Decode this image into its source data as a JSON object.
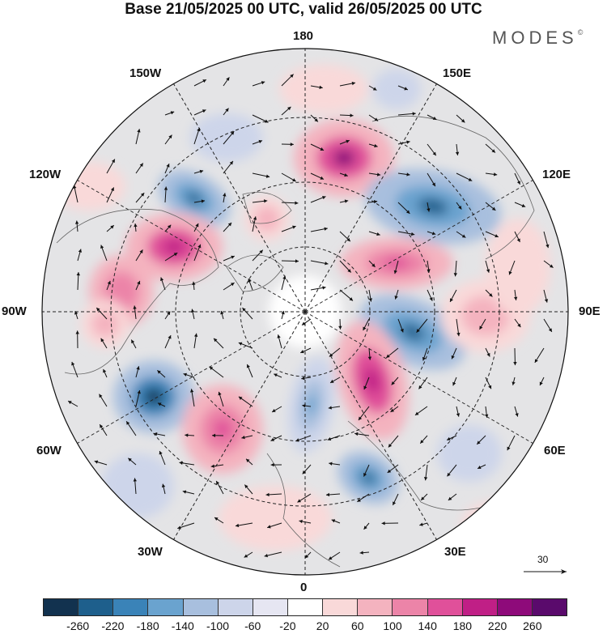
{
  "title": "Base 21/05/2025 00 UTC, valid 26/05/2025 00 UTC",
  "brand": {
    "name": "MODES",
    "mark": "©"
  },
  "longitude_labels": {
    "top": "180",
    "bottom": "0",
    "left": "90W",
    "right": "90E",
    "upper_left_outer": "150W",
    "upper_left_inner": "120W",
    "upper_right_outer": "150E",
    "upper_right_inner": "120E",
    "lower_left_inner": "60W",
    "lower_left_outer": "30W",
    "lower_right_inner": "60E",
    "lower_right_outer": "30E"
  },
  "reference_vector": {
    "label": "30"
  },
  "colorbar": {
    "ticks": [
      "-260",
      "-220",
      "-180",
      "-140",
      "-100",
      "-60",
      "-20",
      "20",
      "60",
      "100",
      "140",
      "180",
      "220",
      "260"
    ],
    "colors": [
      "#12324f",
      "#1e5f8c",
      "#3a83b8",
      "#6aa3cf",
      "#a8bfde",
      "#cdd5ea",
      "#e6e6f2",
      "#ffffff",
      "#f9d9d9",
      "#f4b3bf",
      "#ec84a8",
      "#e0509a",
      "#c01f86",
      "#8e0a7a",
      "#5a0a6c"
    ]
  },
  "map_features": {
    "projection": "north-polar-stereographic",
    "field": "geopotential height anomaly",
    "contours": "dashed parallels and meridians"
  }
}
